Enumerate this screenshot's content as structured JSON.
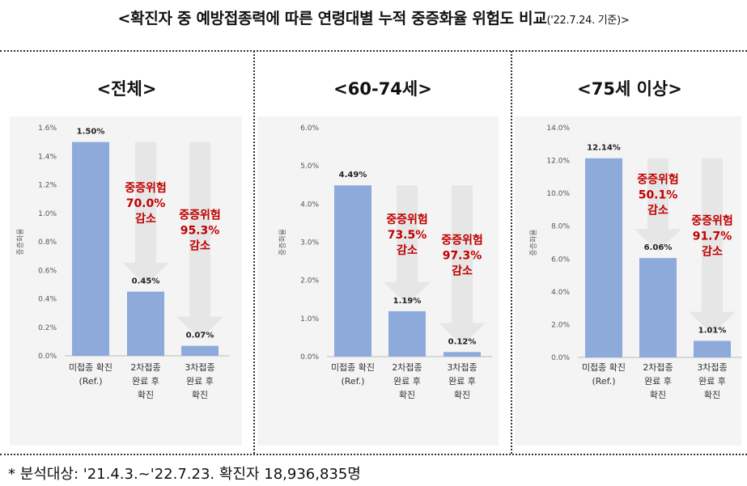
{
  "title": {
    "main": "<확진자 중 예방접종력에 따른 연령대별 누적 중증화율 위험도 비교",
    "suffix": "('22.7.24. 기준)>"
  },
  "footnote": "* 분석대상: '21.4.3.~'22.7.23. 확진자 18,936,835명",
  "colors": {
    "bar": "#8eaadb",
    "arrow": "#e6e6e6",
    "reduction_text": "#c00000",
    "panel_bg": "#f4f4f4"
  },
  "chart_data": [
    {
      "type": "bar",
      "title": "<전체>",
      "ylabel": "중증화율",
      "ylim": [
        0,
        1.6
      ],
      "yticks": [
        "0.0%",
        "0.2%",
        "0.4%",
        "0.6%",
        "0.8%",
        "1.0%",
        "1.2%",
        "1.4%",
        "1.6%"
      ],
      "categories": [
        [
          "미접종 확진",
          "(Ref.)"
        ],
        [
          "2차접종",
          "완료 후",
          "확진"
        ],
        [
          "3차접종",
          "완료 후",
          "확진"
        ]
      ],
      "values": [
        1.5,
        0.45,
        0.07
      ],
      "value_labels": [
        "1.50%",
        "0.45%",
        "0.07%"
      ],
      "reductions": [
        null,
        [
          "중증위험",
          "70.0%",
          "감소"
        ],
        [
          "중증위험",
          "95.3%",
          "감소"
        ]
      ]
    },
    {
      "type": "bar",
      "title": "<60-74세>",
      "ylabel": "중증화율",
      "ylim": [
        0,
        6.0
      ],
      "yticks": [
        "0.0%",
        "1.0%",
        "2.0%",
        "3.0%",
        "4.0%",
        "5.0%",
        "6.0%"
      ],
      "categories": [
        [
          "미접종 확진",
          "(Ref.)"
        ],
        [
          "2차접종",
          "완료 후",
          "확진"
        ],
        [
          "3차접종",
          "완료 후",
          "확진"
        ]
      ],
      "values": [
        4.49,
        1.19,
        0.12
      ],
      "value_labels": [
        "4.49%",
        "1.19%",
        "0.12%"
      ],
      "reductions": [
        null,
        [
          "중증위험",
          "73.5%",
          "감소"
        ],
        [
          "중증위험",
          "97.3%",
          "감소"
        ]
      ]
    },
    {
      "type": "bar",
      "title": "<75세 이상>",
      "ylabel": "중증화율",
      "ylim": [
        0,
        14.0
      ],
      "yticks": [
        "0.0%",
        "2.0%",
        "4.0%",
        "6.0%",
        "8.0%",
        "10.0%",
        "12.0%",
        "14.0%"
      ],
      "categories": [
        [
          "미접종 확진",
          "(Ref.)"
        ],
        [
          "2차접종",
          "완료 후",
          "확진"
        ],
        [
          "3차접종",
          "완료 후",
          "확진"
        ]
      ],
      "values": [
        12.14,
        6.06,
        1.01
      ],
      "value_labels": [
        "12.14%",
        "6.06%",
        "1.01%"
      ],
      "reductions": [
        null,
        [
          "중증위험",
          "50.1%",
          "감소"
        ],
        [
          "중증위험",
          "91.7%",
          "감소"
        ]
      ]
    }
  ]
}
